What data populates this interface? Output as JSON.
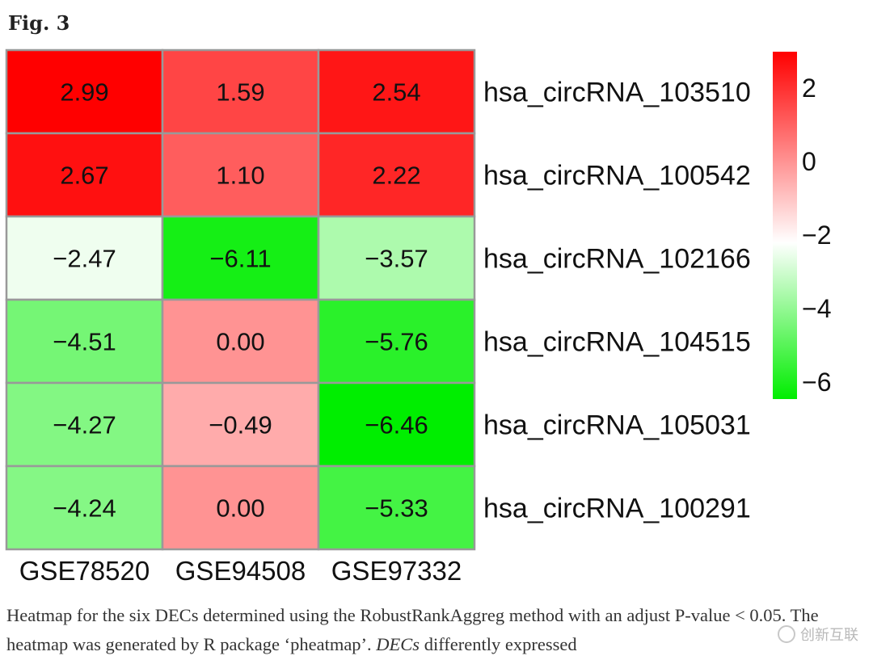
{
  "figure_label": "Fig. 3",
  "caption": {
    "part1": "Heatmap for the six DECs determined using the RobustRankAggreg method with an adjust P-value < 0.05. The heatmap was generated by R package ‘pheatmap’. ",
    "term": "DECs",
    "part2": " differently expressed"
  },
  "watermark": {
    "text": "创新互联",
    "icon": "logo-icon"
  },
  "chart_data": {
    "type": "heatmap",
    "columns": [
      "GSE78520",
      "GSE94508",
      "GSE97332"
    ],
    "rows": [
      "hsa_circRNA_103510",
      "hsa_circRNA_100542",
      "hsa_circRNA_102166",
      "hsa_circRNA_104515",
      "hsa_circRNA_105031",
      "hsa_circRNA_100291"
    ],
    "values": [
      [
        2.99,
        1.59,
        2.54
      ],
      [
        2.67,
        1.1,
        2.22
      ],
      [
        -2.47,
        -6.11,
        -3.57
      ],
      [
        -4.51,
        0.0,
        -5.76
      ],
      [
        -4.27,
        -0.49,
        -6.46
      ],
      [
        -4.24,
        0.0,
        -5.33
      ]
    ],
    "labels": [
      [
        "2.99",
        "1.59",
        "2.54"
      ],
      [
        "2.67",
        "1.10",
        "2.22"
      ],
      [
        "−2.47",
        "−6.11",
        "−3.57"
      ],
      [
        "−4.51",
        "0.00",
        "−5.76"
      ],
      [
        "−4.27",
        "−0.49",
        "−6.46"
      ],
      [
        "−4.24",
        "0.00",
        "−5.33"
      ]
    ],
    "colorbar": {
      "range": [
        -6.46,
        2.99
      ],
      "ticks": [
        2,
        0,
        -2,
        -4,
        -6
      ],
      "tick_labels": [
        "2",
        "0",
        "−2",
        "−4",
        "−6"
      ],
      "colors": {
        "high": "#ff0000",
        "mid": "#ffffff",
        "low": "#00ee00"
      },
      "mid_value": -2.2,
      "placement": "right"
    },
    "border_color": "#999999"
  }
}
